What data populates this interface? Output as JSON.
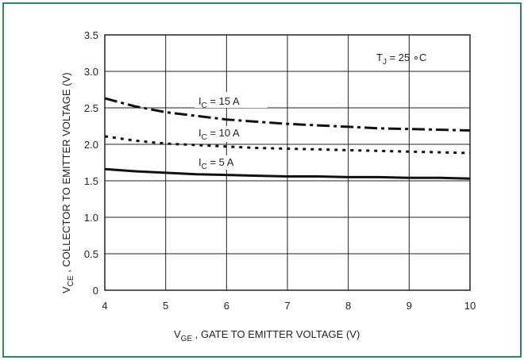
{
  "chart_data": {
    "type": "line",
    "xlabel_main": "V",
    "xlabel_sub": "GE",
    "xlabel_rest": " , GATE TO EMITTER VOLTAGE (V)",
    "ylabel_main": "V",
    "ylabel_sub": "CE",
    "ylabel_rest": " , COLLECTOR TO EMITTER VOLTAGE (V)",
    "xlim": [
      4,
      10
    ],
    "ylim": [
      0,
      3.5
    ],
    "xticks": [
      "4",
      "5",
      "6",
      "7",
      "8",
      "9",
      "10"
    ],
    "yticks": [
      "0",
      "0.5",
      "1.0",
      "1.5",
      "2.0",
      "2.5",
      "3.0",
      "3.5"
    ],
    "grid": true,
    "annotation": {
      "main": "T",
      "sub": "J",
      "rest": " = 25 ∘C"
    },
    "series": [
      {
        "name_main": "I",
        "name_sub": "C",
        "name_rest": " = 15 A",
        "style": "dashdot",
        "x": [
          4,
          4.5,
          5,
          5.5,
          6,
          6.5,
          7,
          7.5,
          8,
          8.5,
          9,
          9.5,
          10
        ],
        "y": [
          2.63,
          2.52,
          2.44,
          2.39,
          2.34,
          2.31,
          2.28,
          2.26,
          2.24,
          2.22,
          2.21,
          2.2,
          2.19
        ]
      },
      {
        "name_main": "I",
        "name_sub": "C",
        "name_rest": " = 10 A",
        "style": "dotted",
        "x": [
          4,
          4.5,
          5,
          5.5,
          6,
          6.5,
          7,
          7.5,
          8,
          8.5,
          9,
          9.5,
          10
        ],
        "y": [
          2.11,
          2.05,
          2.01,
          1.99,
          1.97,
          1.95,
          1.94,
          1.93,
          1.92,
          1.91,
          1.9,
          1.89,
          1.88
        ]
      },
      {
        "name_main": "I",
        "name_sub": "C",
        "name_rest": " = 5 A",
        "style": "solid",
        "x": [
          4,
          4.5,
          5,
          5.5,
          6,
          6.5,
          7,
          7.5,
          8,
          8.5,
          9,
          9.5,
          10
        ],
        "y": [
          1.66,
          1.63,
          1.61,
          1.59,
          1.58,
          1.57,
          1.56,
          1.56,
          1.55,
          1.55,
          1.54,
          1.54,
          1.53
        ]
      }
    ]
  }
}
